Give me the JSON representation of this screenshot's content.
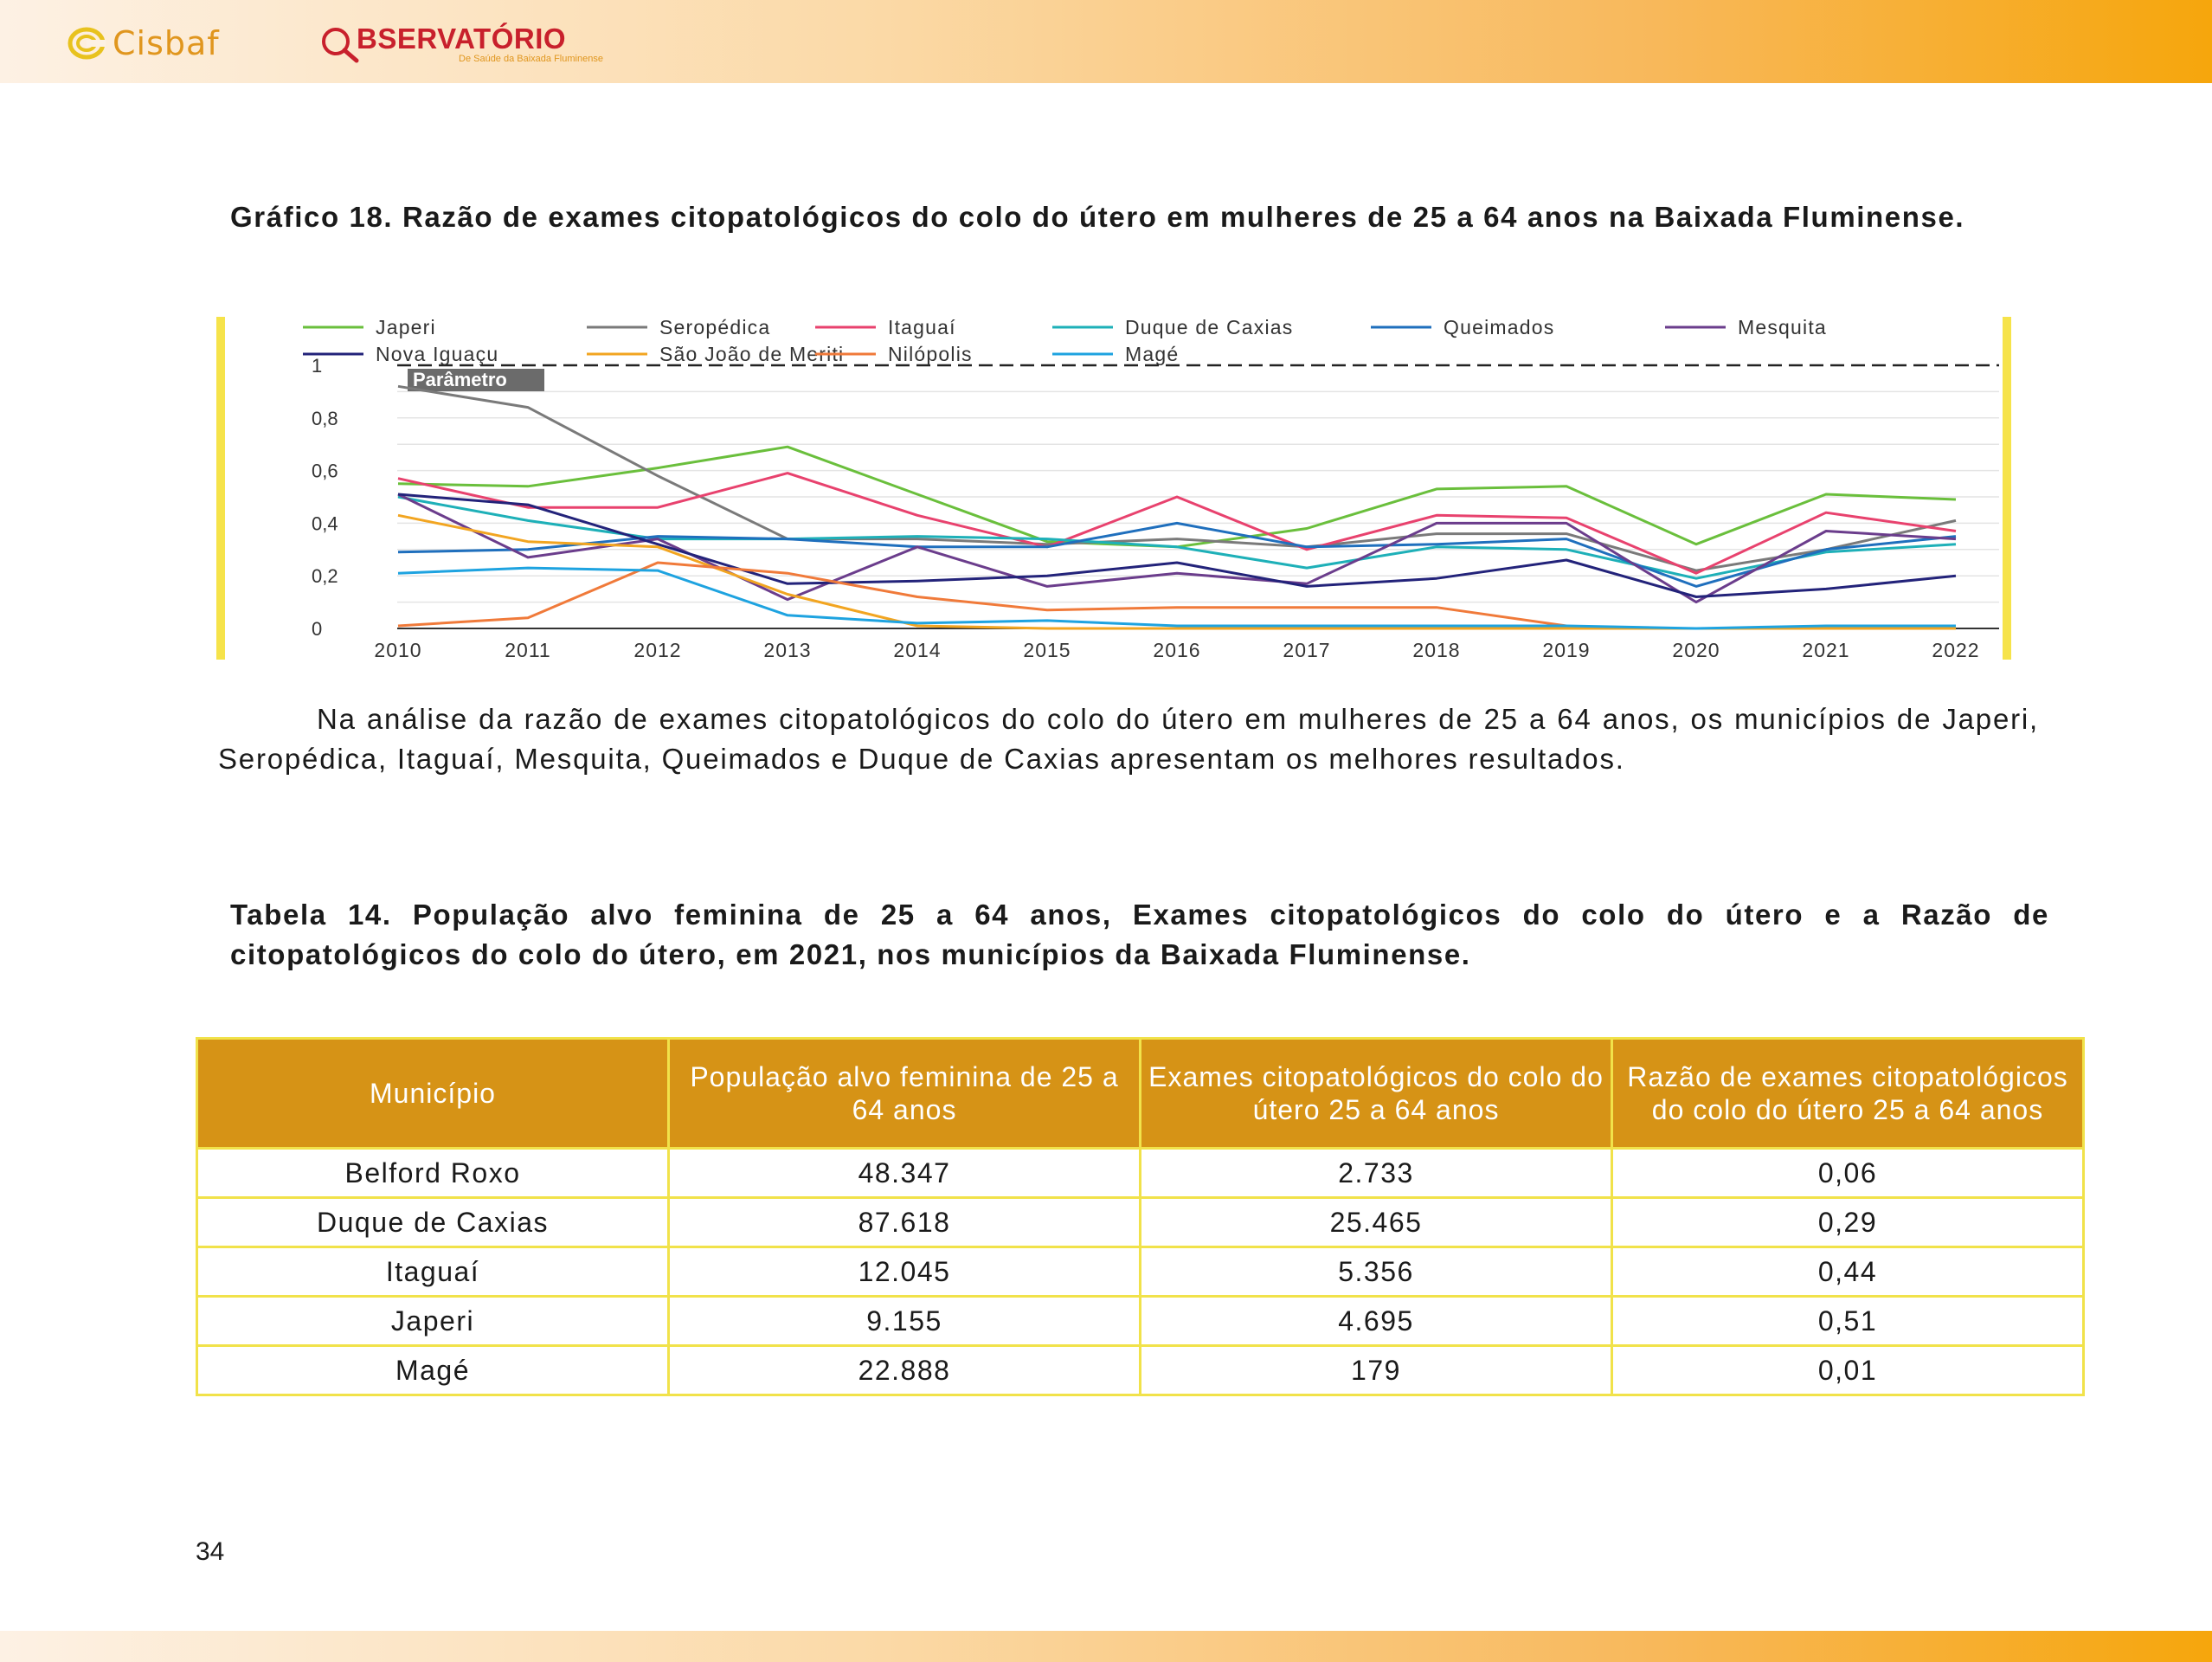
{
  "header": {
    "logo_cisbaf_text": "Cisbaf",
    "logo_observatorio_text": "BSERVATÓRIO",
    "logo_observatorio_sub": "De Saúde da Baixada Fluminense"
  },
  "chart_title": "Gráfico 18. Razão de exames citopatológicos do colo do útero em mulheres de 25 a 64 anos na Baixada Fluminense.",
  "chart_data": {
    "type": "line",
    "title": "",
    "xlabel": "",
    "ylabel": "",
    "x": [
      "2010",
      "2011",
      "2012",
      "2013",
      "2014",
      "2015",
      "2016",
      "2017",
      "2018",
      "2019",
      "2020",
      "2021",
      "2022"
    ],
    "ylim": [
      0,
      1
    ],
    "yticks": [
      "0",
      "0,2",
      "0,4",
      "0,6",
      "0,8",
      "1"
    ],
    "grid": true,
    "legend_position": "top",
    "reference_line": {
      "value": 1,
      "label": "Parâmetro",
      "style": "dashed"
    },
    "series": [
      {
        "name": "Japeri",
        "color": "#6abf3c",
        "values": [
          0.55,
          0.54,
          0.61,
          0.69,
          0.51,
          0.33,
          0.31,
          0.38,
          0.53,
          0.54,
          0.32,
          0.51,
          0.49
        ]
      },
      {
        "name": "Seropédica",
        "color": "#7a7a7a",
        "values": [
          0.92,
          0.84,
          0.58,
          0.34,
          0.34,
          0.32,
          0.34,
          0.31,
          0.36,
          0.36,
          0.22,
          0.3,
          0.41
        ]
      },
      {
        "name": "Itaguaí",
        "color": "#e8426e",
        "values": [
          0.57,
          0.46,
          0.46,
          0.59,
          0.43,
          0.31,
          0.5,
          0.3,
          0.43,
          0.42,
          0.21,
          0.44,
          0.37
        ]
      },
      {
        "name": "Duque de Caxias",
        "color": "#1eb0b8",
        "values": [
          0.5,
          0.41,
          0.34,
          0.34,
          0.35,
          0.34,
          0.31,
          0.23,
          0.31,
          0.3,
          0.19,
          0.29,
          0.32
        ]
      },
      {
        "name": "Queimados",
        "color": "#1f6fbd",
        "values": [
          0.29,
          0.3,
          0.35,
          0.34,
          0.31,
          0.31,
          0.4,
          0.31,
          0.32,
          0.34,
          0.16,
          0.3,
          0.35
        ]
      },
      {
        "name": "Mesquita",
        "color": "#6b3d8c",
        "values": [
          0.51,
          0.27,
          0.34,
          0.11,
          0.31,
          0.16,
          0.21,
          0.17,
          0.4,
          0.4,
          0.1,
          0.37,
          0.34
        ]
      },
      {
        "name": "Nova Iguaçu",
        "color": "#23237a",
        "values": [
          0.51,
          0.47,
          0.32,
          0.17,
          0.18,
          0.2,
          0.25,
          0.16,
          0.19,
          0.26,
          0.12,
          0.15,
          0.2
        ]
      },
      {
        "name": "São João de Meriti",
        "color": "#f2a521",
        "values": [
          0.43,
          0.33,
          0.31,
          0.13,
          0.01,
          0.0,
          0.0,
          0.0,
          0.0,
          0.0,
          0.0,
          0.0,
          0.0
        ]
      },
      {
        "name": "Nilópolis",
        "color": "#f07a3a",
        "values": [
          0.01,
          0.04,
          0.25,
          0.21,
          0.12,
          0.07,
          0.08,
          0.08,
          0.08,
          0.01,
          null,
          null,
          null
        ]
      },
      {
        "name": "Magé",
        "color": "#1ea3e0",
        "values": [
          0.21,
          0.23,
          0.22,
          0.05,
          0.02,
          0.03,
          0.01,
          0.01,
          0.01,
          0.01,
          0.0,
          0.01,
          0.01
        ]
      }
    ]
  },
  "paragraph": "Na análise da razão de exames citopatológicos do colo do útero em mulheres de 25 a 64 anos, os municípios de Japeri, Seropédica, Itaguaí, Mesquita, Queimados e Duque de Caxias apresentam os melhores resultados.",
  "table_title": "Tabela 14. População alvo feminina de 25 a 64 anos, Exames citopatológicos do colo do útero e a Razão de citopatológicos do colo do útero, em 2021, nos municípios da Baixada Fluminense.",
  "table": {
    "headers": [
      "Município",
      "População alvo feminina de 25 a 64 anos",
      "Exames citopatológicos do colo do útero 25 a 64 anos",
      "Razão de exames citopatológicos do colo do útero 25 a 64 anos"
    ],
    "rows": [
      [
        "Belford Roxo",
        "48.347",
        "2.733",
        "0,06"
      ],
      [
        "Duque de Caxias",
        "87.618",
        "25.465",
        "0,29"
      ],
      [
        "Itaguaí",
        "12.045",
        "5.356",
        "0,44"
      ],
      [
        "Japeri",
        "9.155",
        "4.695",
        "0,51"
      ],
      [
        "Magé",
        "22.888",
        "179",
        "0,01"
      ]
    ]
  },
  "page_number": "34",
  "colors": {
    "header_gradient_end": "#f6a60c",
    "table_header": "#d69316",
    "table_border": "#f1e24a",
    "chart_side_bars": "#f6e34a"
  }
}
